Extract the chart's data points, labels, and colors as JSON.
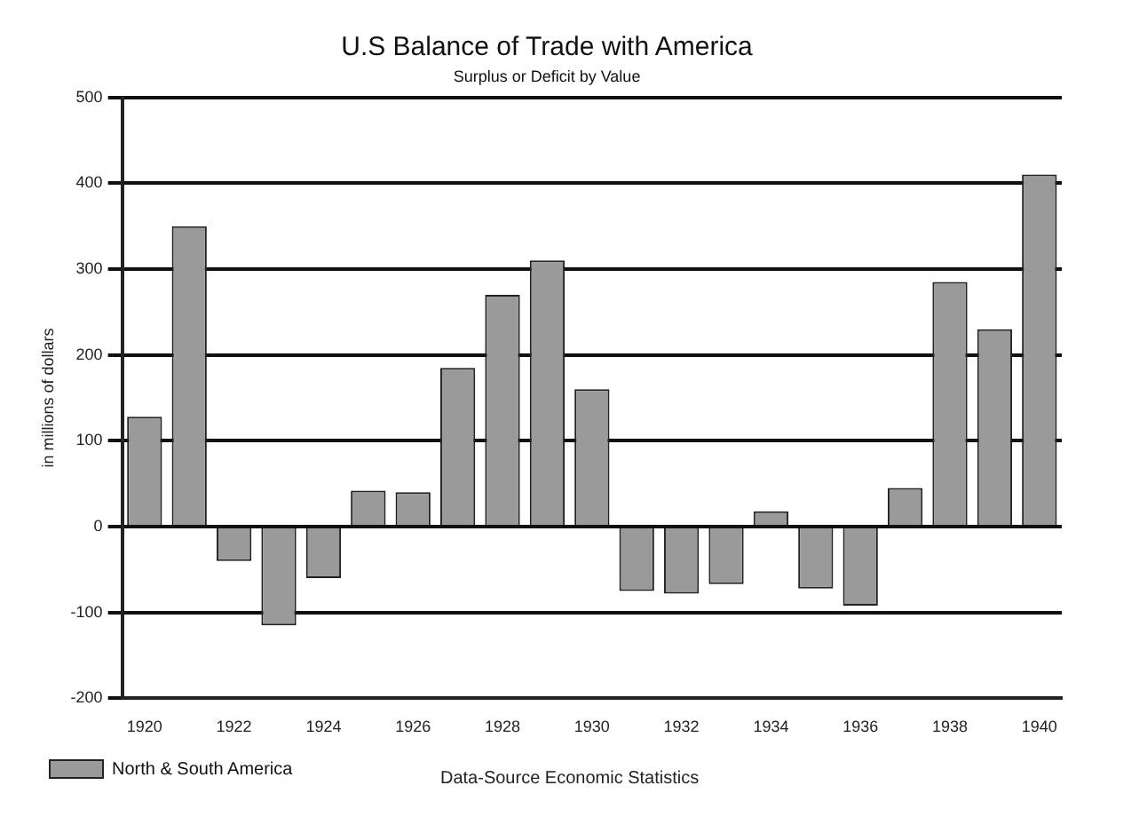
{
  "chart_data": {
    "type": "bar",
    "title": "U.S Balance of Trade with America",
    "subtitle": "Surplus or Deficit by Value",
    "ylabel": "in millions of dollars",
    "categories": [
      "1920",
      null,
      "1922",
      null,
      "1924",
      null,
      "1926",
      null,
      "1928",
      null,
      "1930",
      null,
      "1932",
      null,
      "1934",
      null,
      "1936",
      null,
      "1938",
      null,
      "1940"
    ],
    "series": [
      {
        "name": "North & South America",
        "color": "#9a9a9a",
        "values": [
          128,
          350,
          -40,
          -115,
          -60,
          42,
          40,
          185,
          270,
          310,
          160,
          -75,
          -78,
          -67,
          18,
          -72,
          -92,
          45,
          285,
          230,
          410
        ]
      }
    ],
    "ylim": [
      -200,
      500
    ],
    "yticks": [
      -200,
      -100,
      0,
      100,
      200,
      300,
      400,
      500
    ],
    "grid": "y",
    "legend": "bottom left",
    "annotations": [
      "Data-Source Economic Statistics"
    ]
  }
}
